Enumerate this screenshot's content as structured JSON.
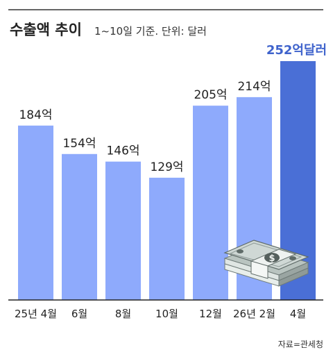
{
  "header": {
    "title": "수출액 추이",
    "subtitle": "1~10일 기준. 단위: 달러"
  },
  "source": "자료=관세청",
  "chart_data": {
    "type": "bar",
    "categories": [
      "25년 4월",
      "6월",
      "8월",
      "10월",
      "12월",
      "26년 2월",
      "4월"
    ],
    "values": [
      184,
      154,
      146,
      129,
      205,
      214,
      252
    ],
    "value_labels": [
      "184억",
      "154억",
      "146억",
      "129억",
      "205억",
      "214억",
      "252억달러"
    ],
    "unit": "억 달러",
    "ylim": [
      0,
      260
    ],
    "grid": false,
    "colors": {
      "bar": "#8eaafc",
      "highlight": "#4a6fd6",
      "label_highlight": "#3f63cc"
    },
    "icon": "money-stack-icon"
  }
}
